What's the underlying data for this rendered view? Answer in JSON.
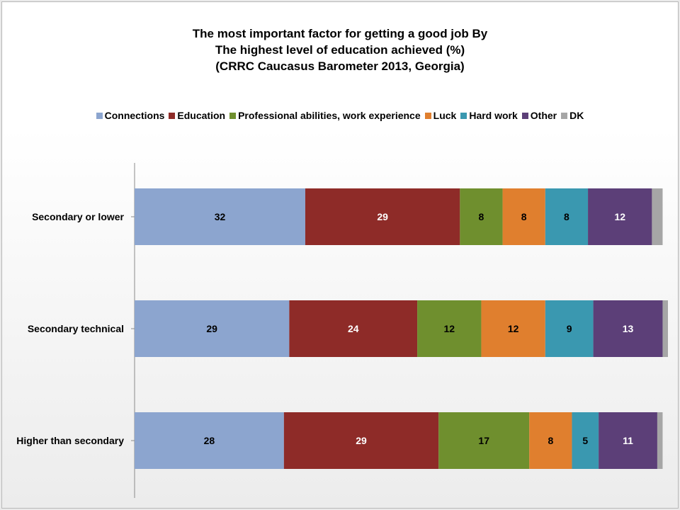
{
  "chart_data": {
    "type": "bar",
    "orientation": "horizontal",
    "stacked": true,
    "title_lines": [
      "The most important factor for getting a good job By",
      "The highest level of education achieved (%)",
      "(CRRC Caucasus Barometer 2013, Georgia)"
    ],
    "categories": [
      "Secondary or lower",
      "Secondary technical",
      "Higher than secondary"
    ],
    "series": [
      {
        "name": "Connections",
        "color": "#8ca5cf",
        "values": [
          32,
          29,
          28
        ],
        "label_color": "#000000"
      },
      {
        "name": "Education",
        "color": "#8e2b28",
        "values": [
          29,
          24,
          29
        ],
        "label_color": "#ffffff"
      },
      {
        "name": "Professional abilities, work experience",
        "color": "#6f8f2e",
        "values": [
          8,
          12,
          17
        ],
        "label_color": "#000000"
      },
      {
        "name": "Luck",
        "color": "#e07f2e",
        "values": [
          8,
          12,
          8
        ],
        "label_color": "#000000"
      },
      {
        "name": "Hard work",
        "color": "#3a98b0",
        "values": [
          8,
          9,
          5
        ],
        "label_color": "#000000"
      },
      {
        "name": "Other",
        "color": "#5c3f78",
        "values": [
          12,
          13,
          11
        ],
        "label_color": "#ffffff"
      },
      {
        "name": "DK",
        "color": "#a6a6a6",
        "values": [
          2,
          1,
          1
        ],
        "show_label": false
      }
    ],
    "xlim": [
      0,
      100
    ],
    "grid": false,
    "legend_position": "top"
  }
}
